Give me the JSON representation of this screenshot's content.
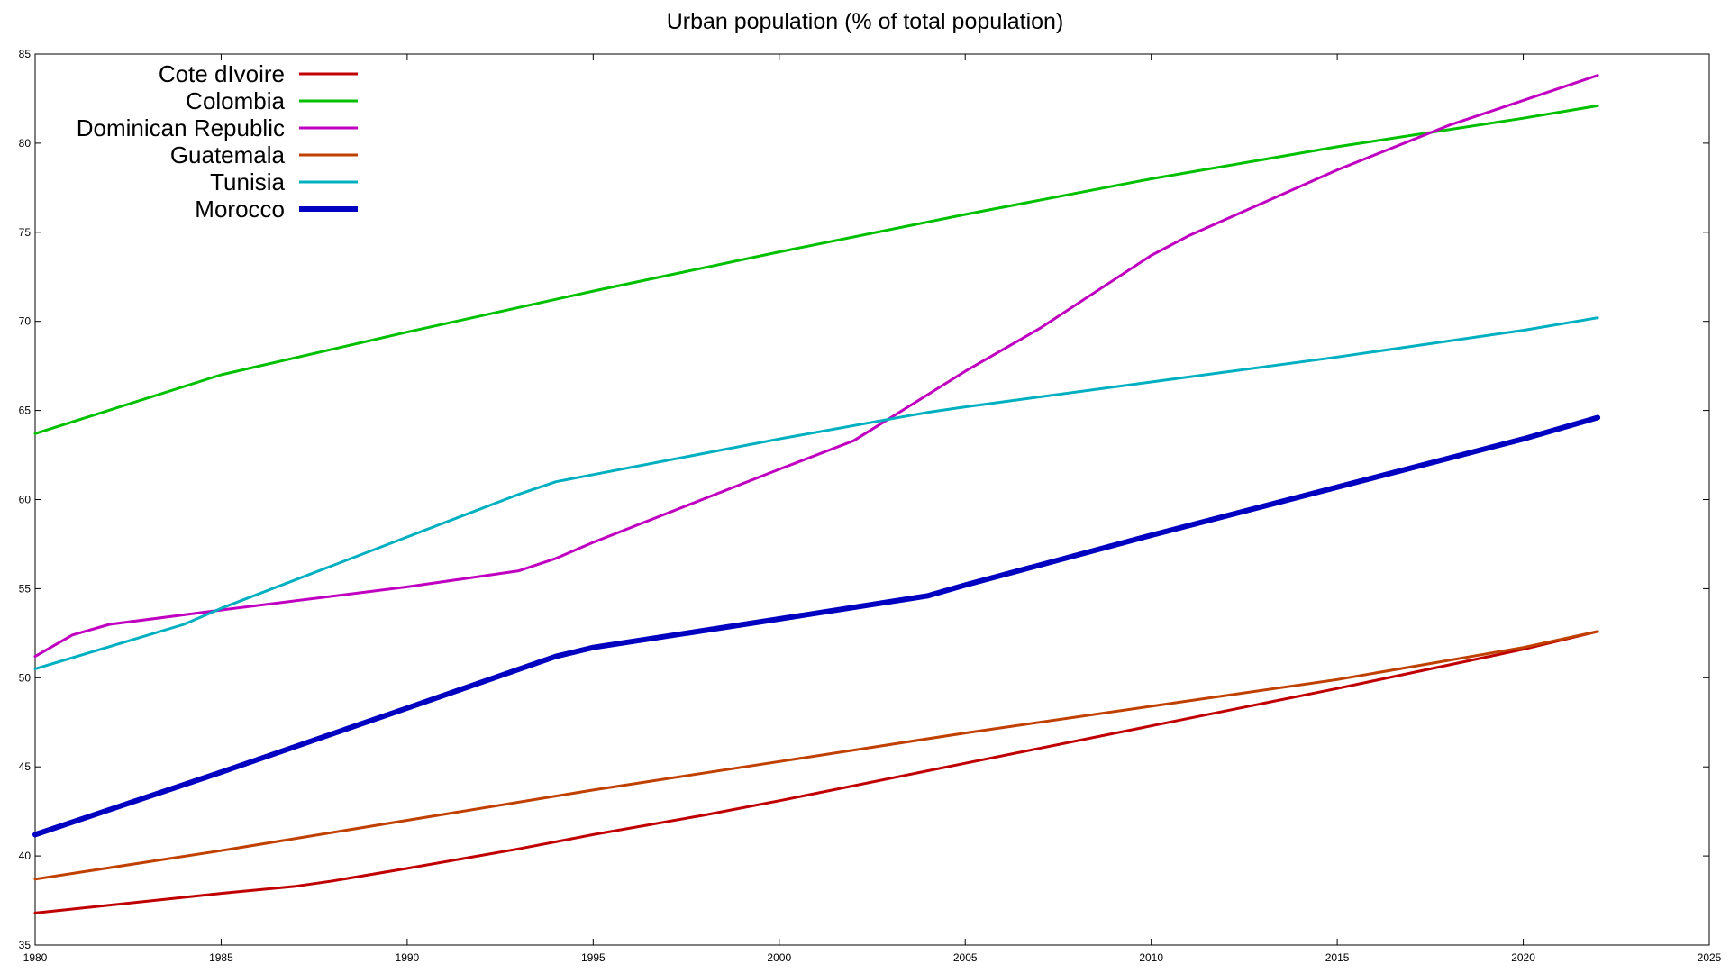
{
  "chart_data": {
    "type": "line",
    "title": "Urban population (% of total population)",
    "xlabel": "",
    "ylabel": "",
    "xlim": [
      1980,
      2025
    ],
    "ylim": [
      35,
      85
    ],
    "x_ticks": [
      "1980",
      "1985",
      "1990",
      "1995",
      "2000",
      "2005",
      "2010",
      "2015",
      "2020",
      "2025"
    ],
    "y_ticks": [
      "35",
      "40",
      "45",
      "50",
      "55",
      "60",
      "65",
      "70",
      "75",
      "80",
      "85"
    ],
    "grid": false,
    "legend_position": "top-left",
    "series": [
      {
        "name": "Cote dIvoire",
        "color": "#c00000",
        "width": 3,
        "points": [
          [
            1980,
            36.8
          ],
          [
            1985,
            37.9
          ],
          [
            1987,
            38.3
          ],
          [
            1988,
            38.6
          ],
          [
            1990,
            39.3
          ],
          [
            1993,
            40.4
          ],
          [
            1995,
            41.2
          ],
          [
            1998,
            42.3
          ],
          [
            2000,
            43.1
          ],
          [
            2005,
            45.2
          ],
          [
            2010,
            47.3
          ],
          [
            2015,
            49.4
          ],
          [
            2020,
            51.6
          ],
          [
            2022,
            52.6
          ]
        ]
      },
      {
        "name": "Colombia",
        "color": "#00c000",
        "width": 3,
        "points": [
          [
            1980,
            63.7
          ],
          [
            1985,
            67.0
          ],
          [
            1990,
            69.4
          ],
          [
            1995,
            71.7
          ],
          [
            2000,
            73.9
          ],
          [
            2005,
            76.0
          ],
          [
            2010,
            78.0
          ],
          [
            2015,
            79.8
          ],
          [
            2020,
            81.4
          ],
          [
            2022,
            82.1
          ]
        ]
      },
      {
        "name": "Dominican Republic",
        "color": "#c000c0",
        "width": 3,
        "points": [
          [
            1980,
            51.2
          ],
          [
            1981,
            52.4
          ],
          [
            1982,
            53.0
          ],
          [
            1985,
            53.8
          ],
          [
            1990,
            55.1
          ],
          [
            1993,
            56.0
          ],
          [
            1994,
            56.7
          ],
          [
            1995,
            57.6
          ],
          [
            2000,
            61.7
          ],
          [
            2002,
            63.3
          ],
          [
            2005,
            67.2
          ],
          [
            2007,
            69.6
          ],
          [
            2010,
            73.7
          ],
          [
            2011,
            74.8
          ],
          [
            2015,
            78.5
          ],
          [
            2018,
            81.0
          ],
          [
            2020,
            82.4
          ],
          [
            2022,
            83.8
          ]
        ]
      },
      {
        "name": "Guatemala",
        "color": "#c04000",
        "width": 3,
        "points": [
          [
            1980,
            38.7
          ],
          [
            1985,
            40.3
          ],
          [
            1990,
            42.0
          ],
          [
            1995,
            43.7
          ],
          [
            2000,
            45.3
          ],
          [
            2005,
            46.9
          ],
          [
            2010,
            48.4
          ],
          [
            2015,
            49.9
          ],
          [
            2020,
            51.7
          ],
          [
            2022,
            52.6
          ]
        ]
      },
      {
        "name": "Tunisia",
        "color": "#00b0c0",
        "width": 3,
        "points": [
          [
            1980,
            50.5
          ],
          [
            1984,
            53.0
          ],
          [
            1985,
            53.9
          ],
          [
            1990,
            57.9
          ],
          [
            1993,
            60.3
          ],
          [
            1994,
            61.0
          ],
          [
            1995,
            61.4
          ],
          [
            2000,
            63.4
          ],
          [
            2004,
            64.9
          ],
          [
            2005,
            65.2
          ],
          [
            2010,
            66.6
          ],
          [
            2015,
            68.0
          ],
          [
            2020,
            69.5
          ],
          [
            2022,
            70.2
          ]
        ]
      },
      {
        "name": "Morocco",
        "color": "#0000c0",
        "width": 6,
        "points": [
          [
            1980,
            41.2
          ],
          [
            1985,
            44.7
          ],
          [
            1990,
            48.3
          ],
          [
            1994,
            51.2
          ],
          [
            1995,
            51.7
          ],
          [
            2000,
            53.3
          ],
          [
            2004,
            54.6
          ],
          [
            2005,
            55.2
          ],
          [
            2010,
            58.0
          ],
          [
            2015,
            60.7
          ],
          [
            2020,
            63.4
          ],
          [
            2022,
            64.6
          ]
        ]
      }
    ]
  }
}
